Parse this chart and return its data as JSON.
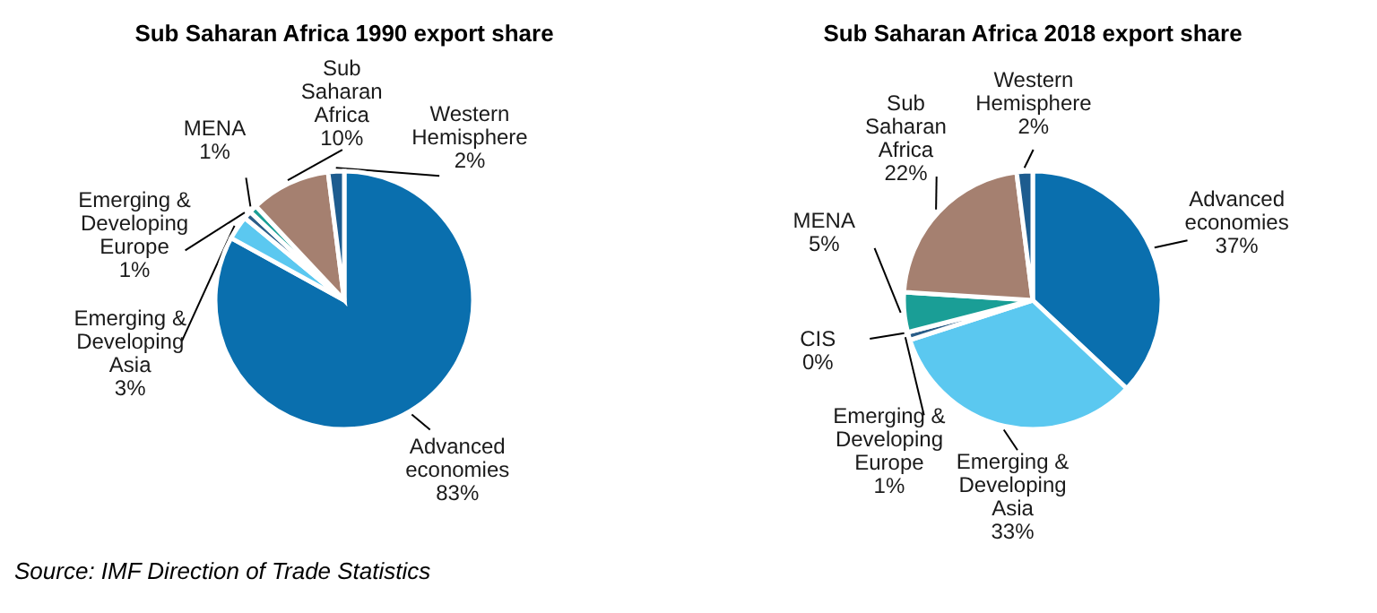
{
  "chart_data": [
    {
      "type": "pie",
      "title": "Sub Saharan Africa 1990 export share",
      "categories": [
        "Advanced economies",
        "Emerging & Developing Asia",
        "Emerging & Developing Europe",
        "MENA",
        "Sub Saharan Africa",
        "Western Hemisphere"
      ],
      "values": [
        83,
        3,
        1,
        1,
        10,
        2
      ],
      "colors": [
        "#0a6fae",
        "#5bc8f0",
        "#2a5d88",
        "#1a9e96",
        "#a58070",
        "#1d5c8f"
      ],
      "value_labels": [
        "83%",
        "3%",
        "1%",
        "1%",
        "10%",
        "2%"
      ],
      "annotations": [
        "Source: IMF Direction of Trade Statistics"
      ]
    },
    {
      "type": "pie",
      "title": "Sub Saharan Africa 2018 export share",
      "categories": [
        "Advanced economies",
        "Emerging & Developing Asia",
        "Emerging & Developing Europe",
        "CIS",
        "MENA",
        "Sub Saharan Africa",
        "Western Hemisphere"
      ],
      "values": [
        37,
        33,
        1,
        0,
        5,
        22,
        2
      ],
      "colors": [
        "#0a6fae",
        "#5bc8f0",
        "#2a5d88",
        "#7f7f7f",
        "#1a9e96",
        "#a58070",
        "#1d5c8f"
      ],
      "value_labels": [
        "37%",
        "33%",
        "1%",
        "0%",
        "5%",
        "22%",
        "2%"
      ]
    }
  ]
}
